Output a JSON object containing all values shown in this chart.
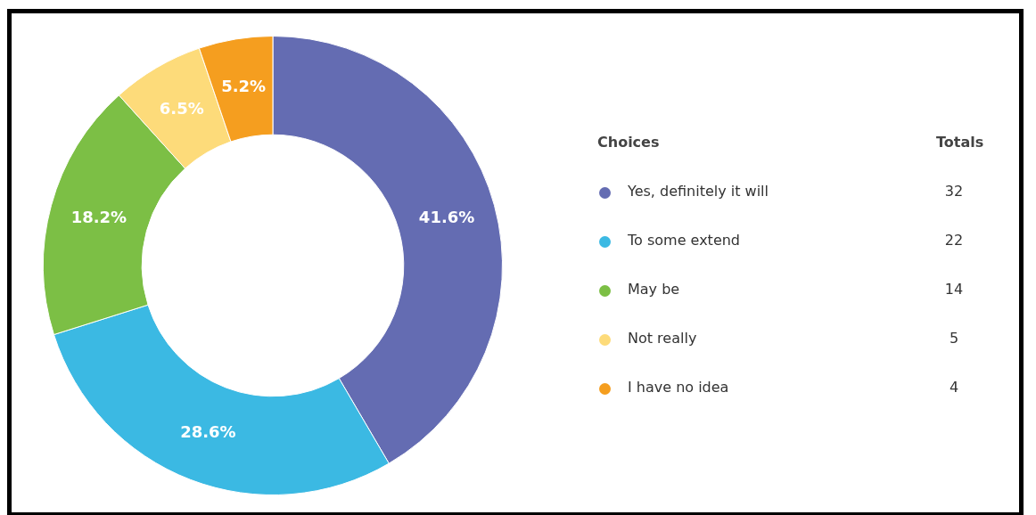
{
  "chart_data": {
    "type": "donut",
    "legend_title": "Choices",
    "annotations": [
      "Totals",
      "32",
      "22",
      "14",
      "5",
      "4"
    ],
    "categories": [
      "Yes, definitely it will",
      "To some extend",
      "May be",
      "Not really",
      "I have no idea"
    ],
    "values": [
      41.6,
      28.6,
      18.2,
      6.5,
      5.2
    ],
    "value_labels": [
      "41.6%",
      "28.6%",
      "18.2%",
      "6.5%",
      "5.2%"
    ],
    "colors": [
      "#646cb2",
      "#3bb9e3",
      "#7cbf45",
      "#fddb7a",
      "#f59e1f"
    ],
    "legend": "right"
  }
}
